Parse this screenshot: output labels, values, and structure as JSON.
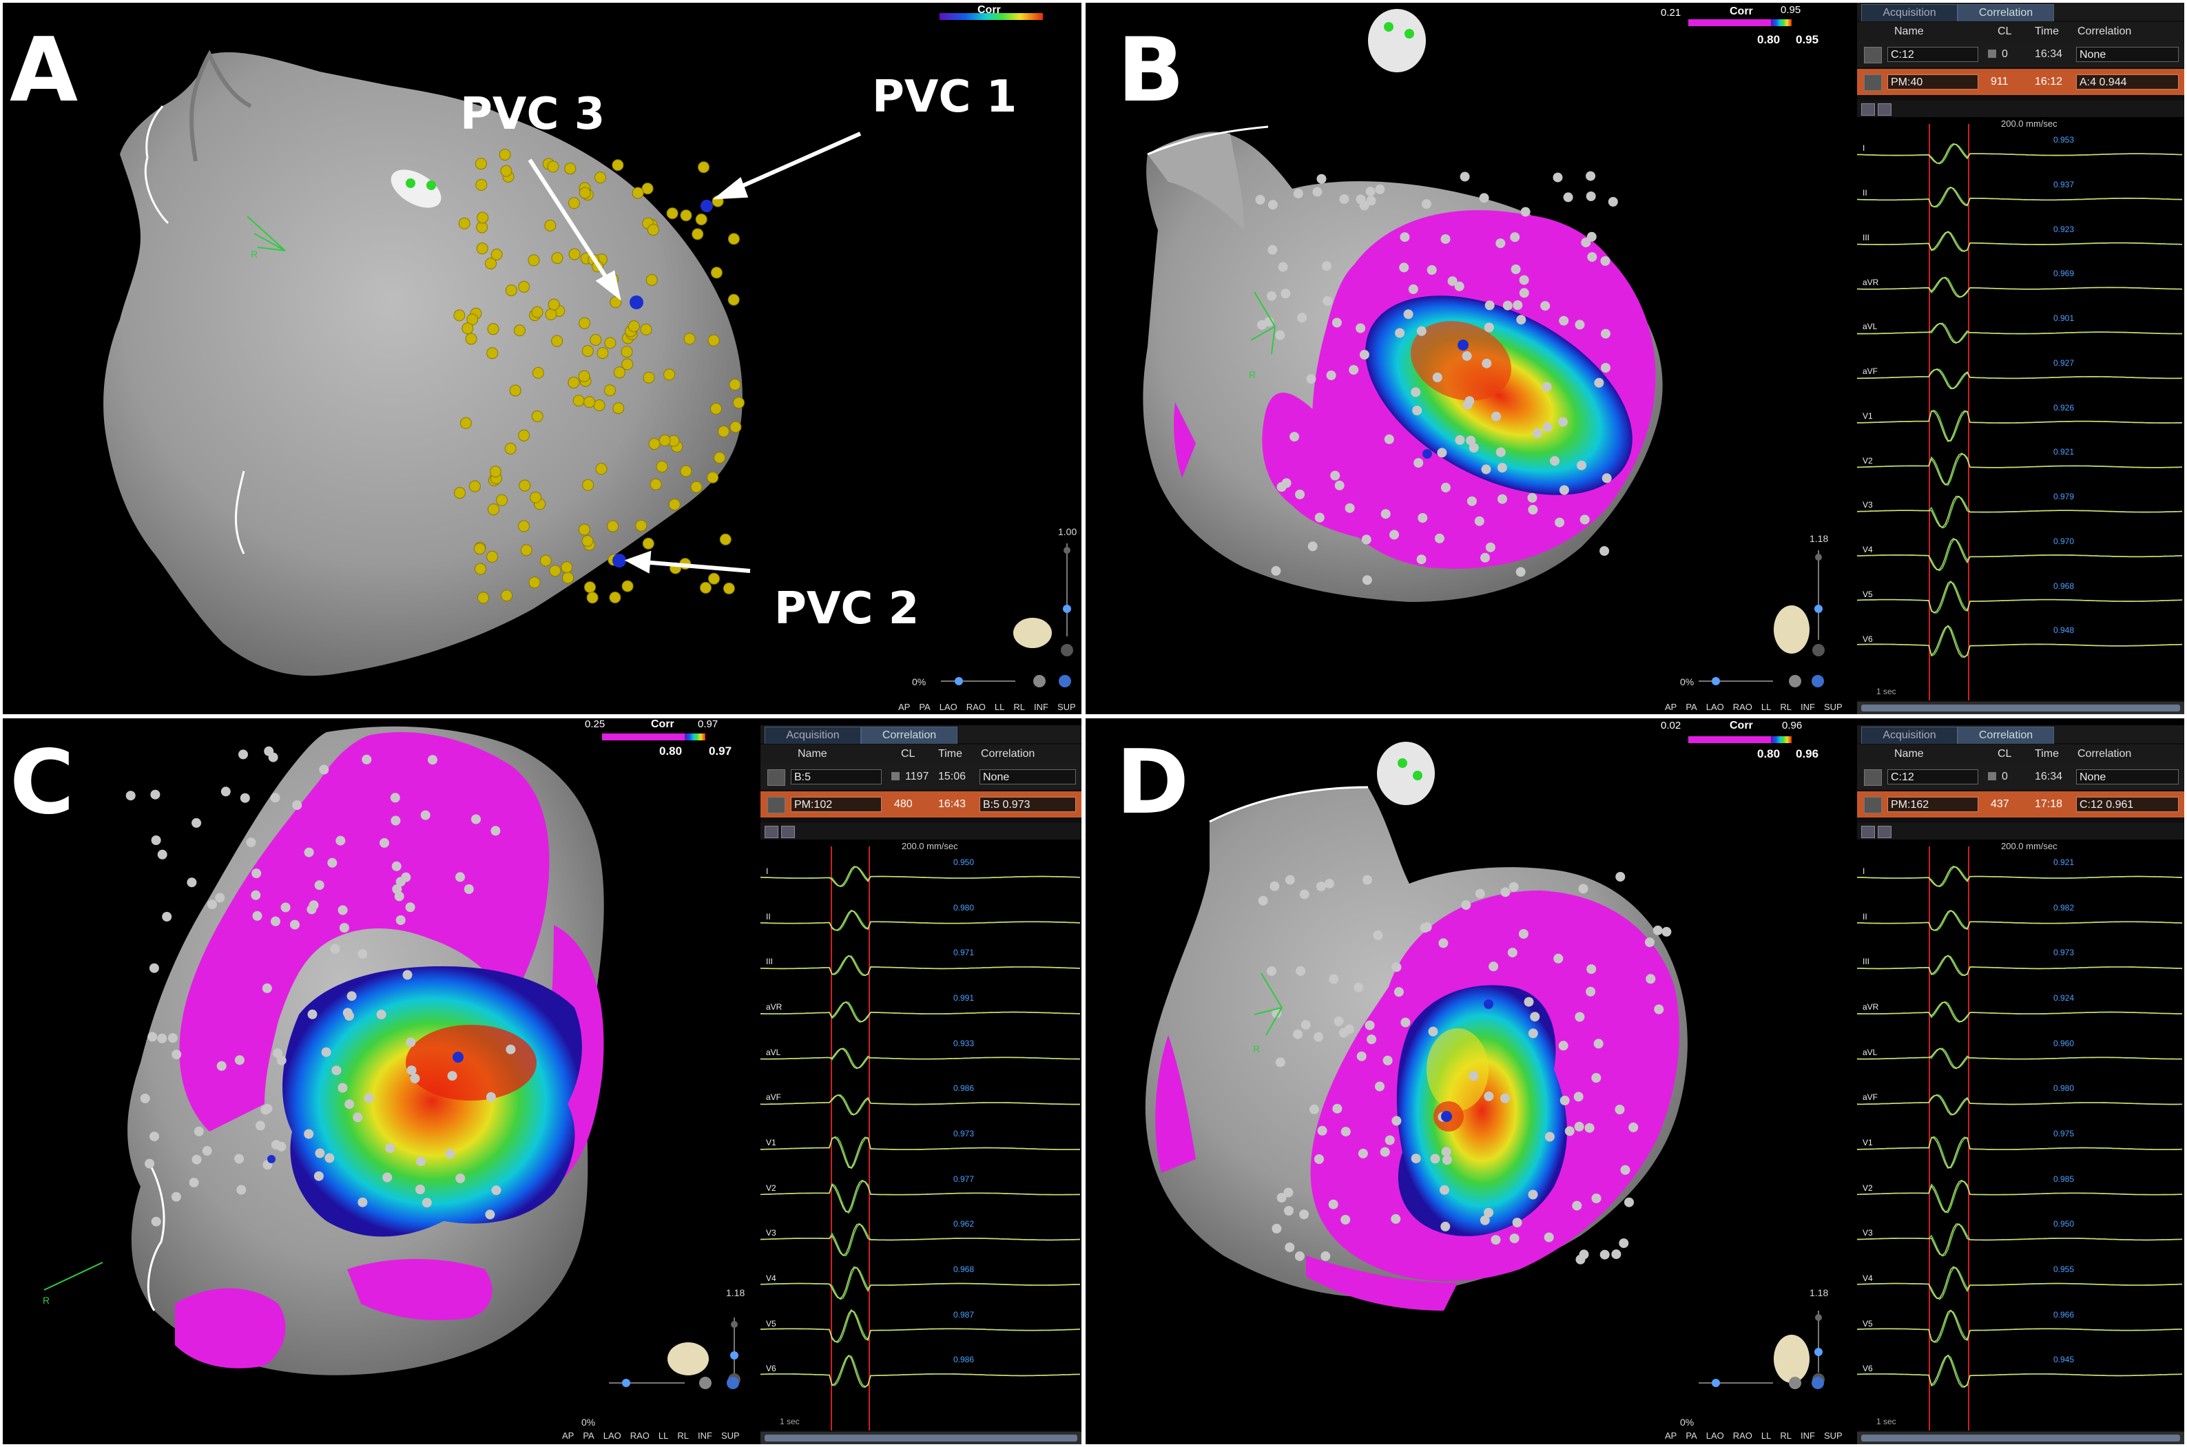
{
  "panels": {
    "A": {
      "letter": "A",
      "colorbar": {
        "label": "Corr"
      },
      "labels": {
        "pvc1": "PVC 1",
        "pvc2": "PVC 2",
        "pvc3": "PVC 3"
      },
      "orientation": "R",
      "zoom": "1.00",
      "percent": "0%",
      "views": [
        "AP",
        "PA",
        "LAO",
        "RAO",
        "LL",
        "RL",
        "INF",
        "SUP"
      ]
    },
    "B": {
      "letter": "B",
      "colorbar": {
        "label": "Corr",
        "min": "0.21",
        "max": "0.95",
        "low": "0.80",
        "high": "0.95"
      },
      "orientation": "R",
      "zoom": "1.18",
      "percent": "0%",
      "views": [
        "AP",
        "PA",
        "LAO",
        "RAO",
        "LL",
        "RL",
        "INF",
        "SUP"
      ],
      "table": {
        "tabs": [
          "Acquisition",
          "Correlation"
        ],
        "headers": [
          "Name",
          "CL",
          "Time",
          "Correlation"
        ],
        "row1": {
          "name": "C:12",
          "cl": "0",
          "time": "16:34",
          "corr": "None"
        },
        "row2": {
          "name": "PM:40",
          "cl": "911",
          "time": "16:12",
          "corr": "A:4  0.944"
        }
      },
      "ecg": {
        "speed": "200.0 mm/sec",
        "one_sec": "1 sec",
        "leads": [
          "I",
          "II",
          "III",
          "aVR",
          "aVL",
          "aVF",
          "V1",
          "V2",
          "V3",
          "V4",
          "V5",
          "V6"
        ],
        "corr_values": [
          "0.953",
          "0.937",
          "0.923",
          "0.969",
          "0.901",
          "0.927",
          "0.926",
          "0.921",
          "0.979",
          "0.970",
          "0.968",
          "0.948"
        ]
      }
    },
    "C": {
      "letter": "C",
      "colorbar": {
        "label": "Corr",
        "min": "0.25",
        "max": "0.97",
        "low": "0.80",
        "high": "0.97"
      },
      "orientation": "R",
      "zoom": "1.18",
      "percent": "0%",
      "views": [
        "AP",
        "PA",
        "LAO",
        "RAO",
        "LL",
        "RL",
        "INF",
        "SUP"
      ],
      "table": {
        "tabs": [
          "Acquisition",
          "Correlation"
        ],
        "headers": [
          "Name",
          "CL",
          "Time",
          "Correlation"
        ],
        "row1": {
          "name": "B:5",
          "cl": "1197",
          "time": "15:06",
          "corr": "None"
        },
        "row2": {
          "name": "PM:102",
          "cl": "480",
          "time": "16:43",
          "corr": "B:5  0.973"
        }
      },
      "ecg": {
        "speed": "200.0 mm/sec",
        "one_sec": "1 sec",
        "leads": [
          "I",
          "II",
          "III",
          "aVR",
          "aVL",
          "aVF",
          "V1",
          "V2",
          "V3",
          "V4",
          "V5",
          "V6"
        ],
        "corr_values": [
          "0.950",
          "0.980",
          "0.971",
          "0.991",
          "0.933",
          "0.986",
          "0.973",
          "0.977",
          "0.962",
          "0.968",
          "0.987",
          "0.986"
        ]
      }
    },
    "D": {
      "letter": "D",
      "colorbar": {
        "label": "Corr",
        "min": "0.02",
        "max": "0.96",
        "low": "0.80",
        "high": "0.96"
      },
      "orientation": "R",
      "zoom": "1.18",
      "percent": "0%",
      "views": [
        "AP",
        "PA",
        "LAO",
        "RAO",
        "LL",
        "RL",
        "INF",
        "SUP"
      ],
      "table": {
        "tabs": [
          "Acquisition",
          "Correlation"
        ],
        "headers": [
          "Name",
          "CL",
          "Time",
          "Correlation"
        ],
        "row1": {
          "name": "C:12",
          "cl": "0",
          "time": "16:34",
          "corr": "None"
        },
        "row2": {
          "name": "PM:162",
          "cl": "437",
          "time": "17:18",
          "corr": "C:12  0.961"
        }
      },
      "ecg": {
        "speed": "200.0 mm/sec",
        "one_sec": "1 sec",
        "leads": [
          "I",
          "II",
          "III",
          "aVR",
          "aVL",
          "aVF",
          "V1",
          "V2",
          "V3",
          "V4",
          "V5",
          "V6"
        ],
        "corr_values": [
          "0.921",
          "0.982",
          "0.973",
          "0.924",
          "0.960",
          "0.980",
          "0.975",
          "0.985",
          "0.950",
          "0.955",
          "0.966",
          "0.945"
        ]
      }
    }
  },
  "colors": {
    "background": "#000000",
    "heart_surface": "#9a9a9a",
    "low_corr": "#e020e0",
    "selected_row": "#c4572a",
    "tag_points": "#c9b400",
    "pvc_marker": "#1a2fd0",
    "ecg_trace_green": "#4fd84f",
    "ecg_trace_yellow": "#e6e07a",
    "window_line": "#d02020"
  }
}
